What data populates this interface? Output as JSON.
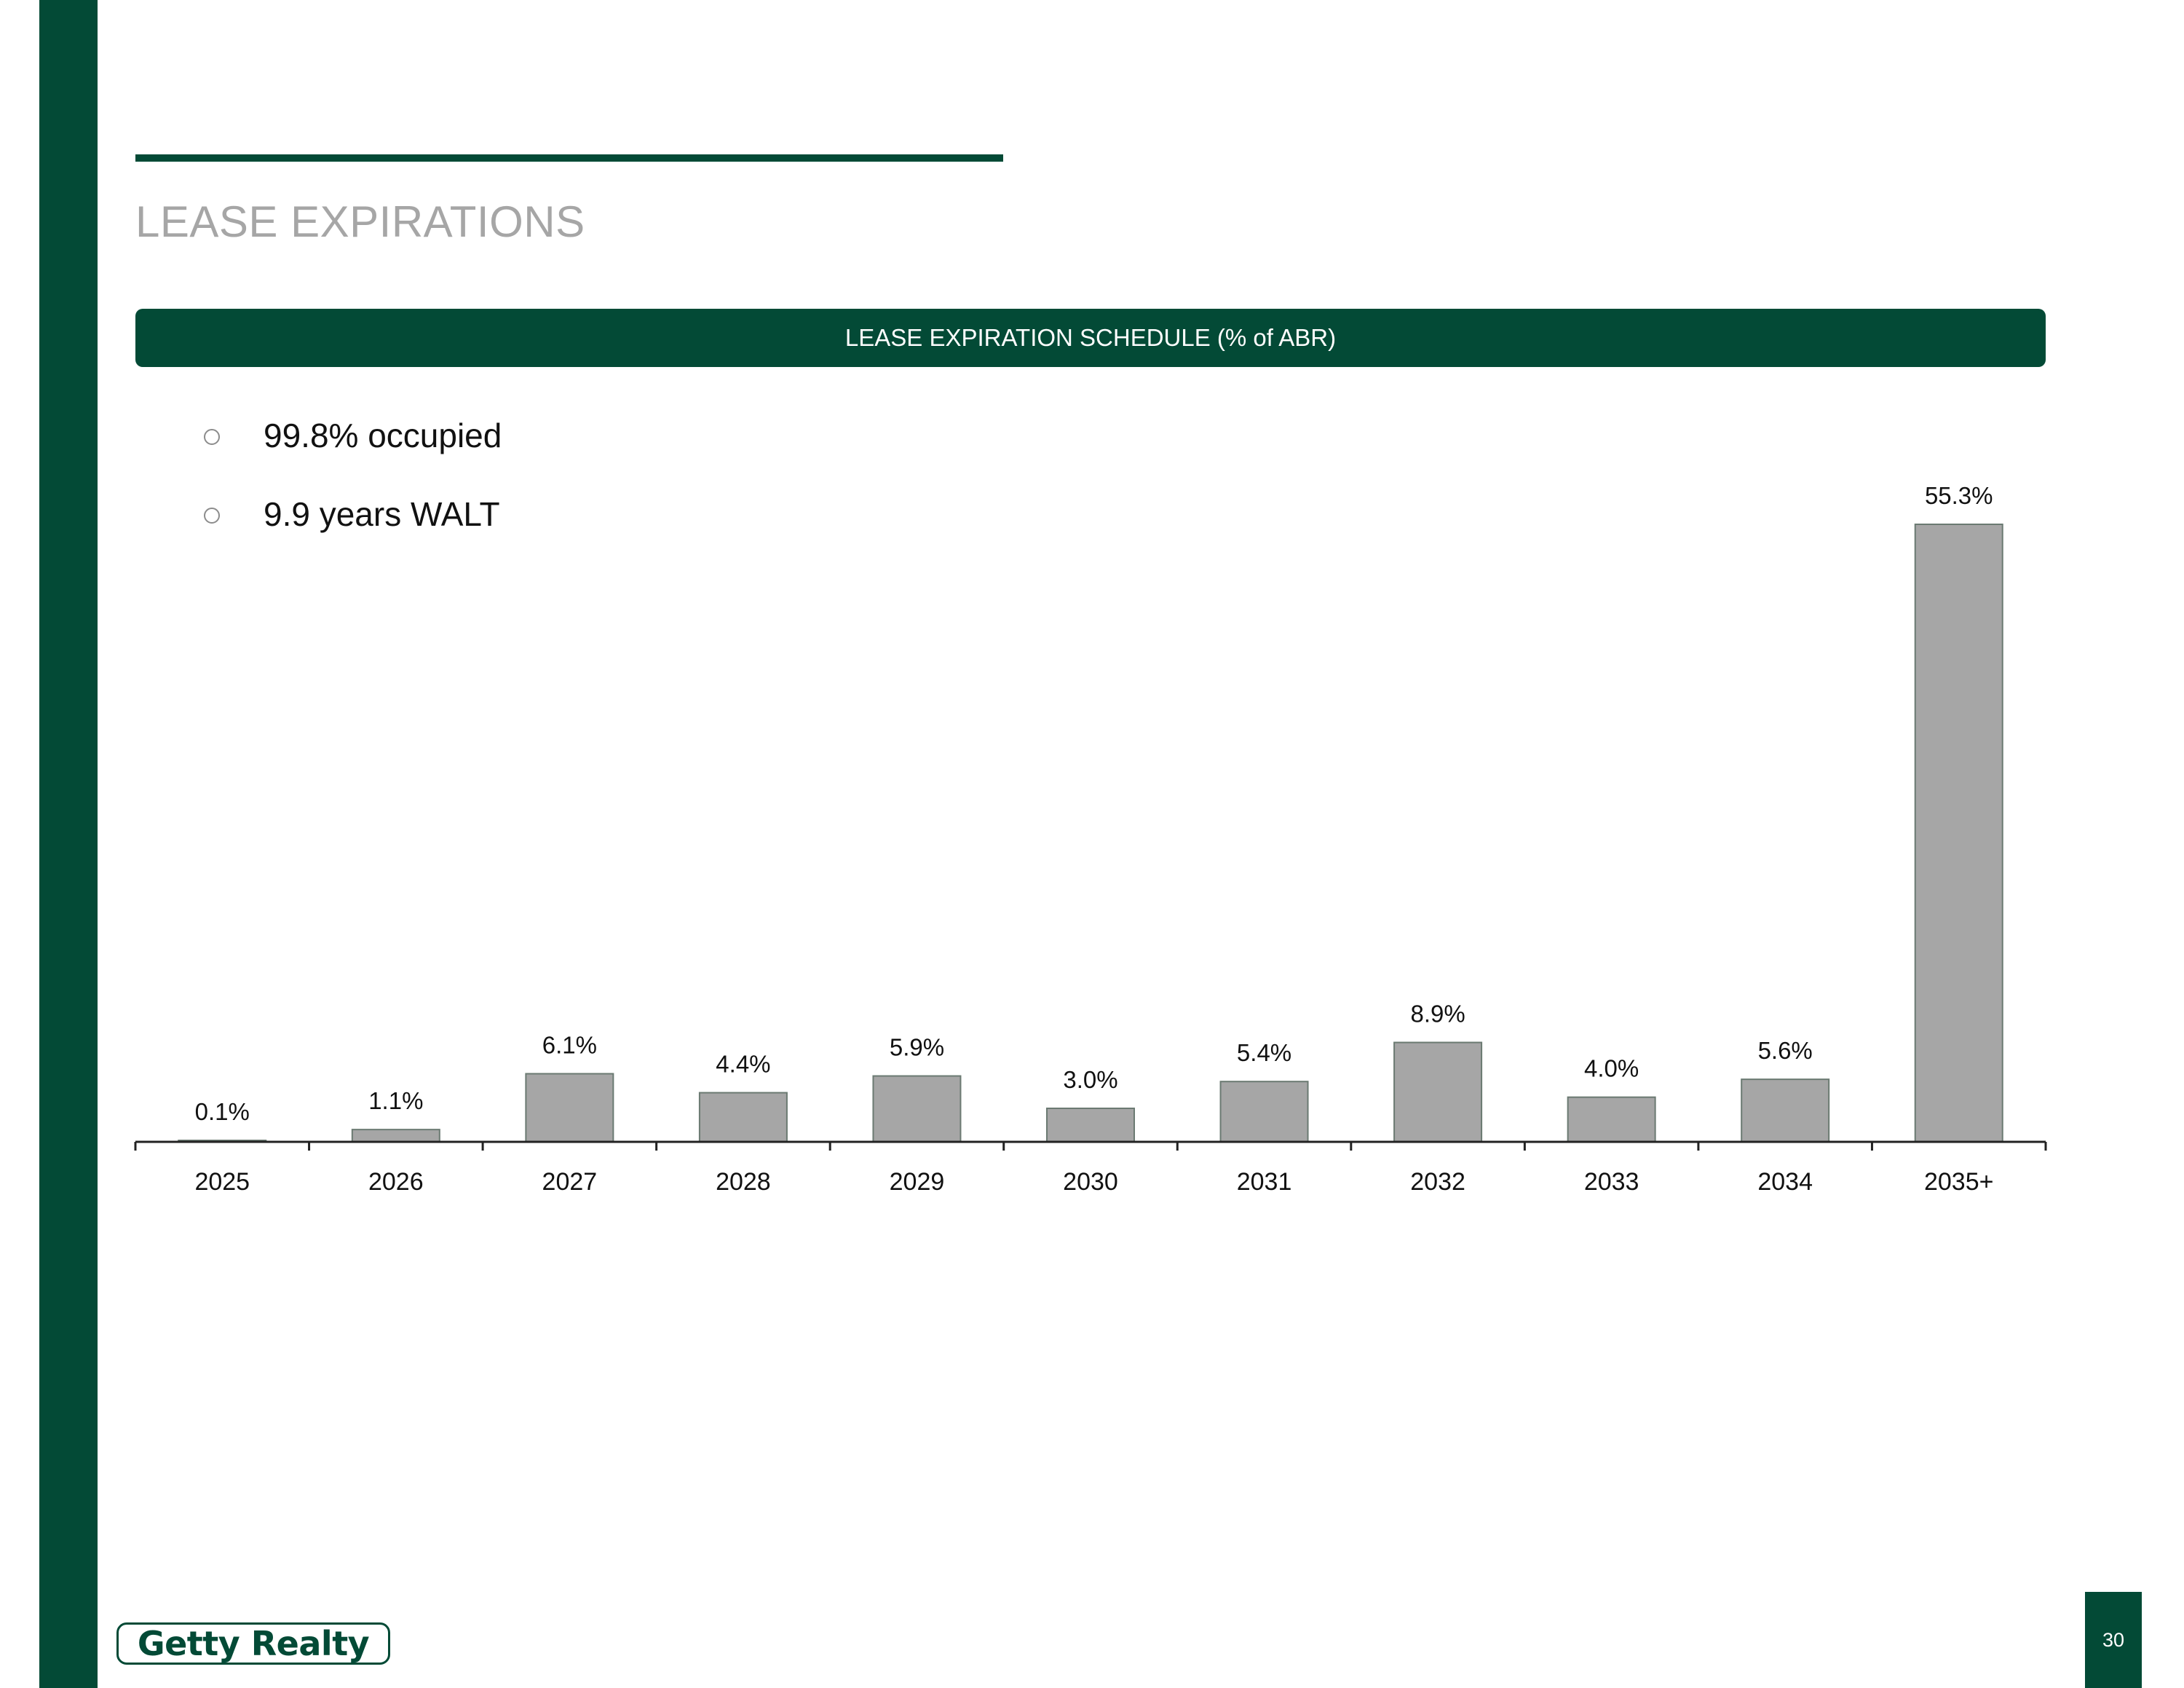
{
  "page": {
    "title": "LEASE EXPIRATIONS",
    "page_number": "30",
    "logo_text": "Getty Realty"
  },
  "chart_header": "LEASE EXPIRATION SCHEDULE (% of ABR)",
  "bullets": [
    {
      "icon": "circle-bullet-icon",
      "text": "99.8% occupied"
    },
    {
      "icon": "circle-bullet-icon",
      "text": "9.9 years WALT"
    }
  ],
  "colors": {
    "brand_green": "#034a36",
    "bar_fill": "#a6a6a6",
    "bar_stroke": "#6b7a72",
    "title_gray": "#a6a6a6"
  },
  "chart_data": {
    "type": "bar",
    "categories": [
      "2025",
      "2026",
      "2027",
      "2028",
      "2029",
      "2030",
      "2031",
      "2032",
      "2033",
      "2034",
      "2035+"
    ],
    "values": [
      0.1,
      1.1,
      6.1,
      4.4,
      5.9,
      3.0,
      5.4,
      8.9,
      4.0,
      5.6,
      55.3
    ],
    "data_labels": [
      "0.1%",
      "1.1%",
      "6.1%",
      "4.4%",
      "5.9%",
      "3.0%",
      "5.4%",
      "8.9%",
      "4.0%",
      "5.6%",
      "55.3%"
    ],
    "title": "LEASE EXPIRATION SCHEDULE (% of ABR)",
    "xlabel": "",
    "ylabel": "",
    "ylim": [
      0,
      55.3
    ],
    "grid": false,
    "legend": "none"
  }
}
